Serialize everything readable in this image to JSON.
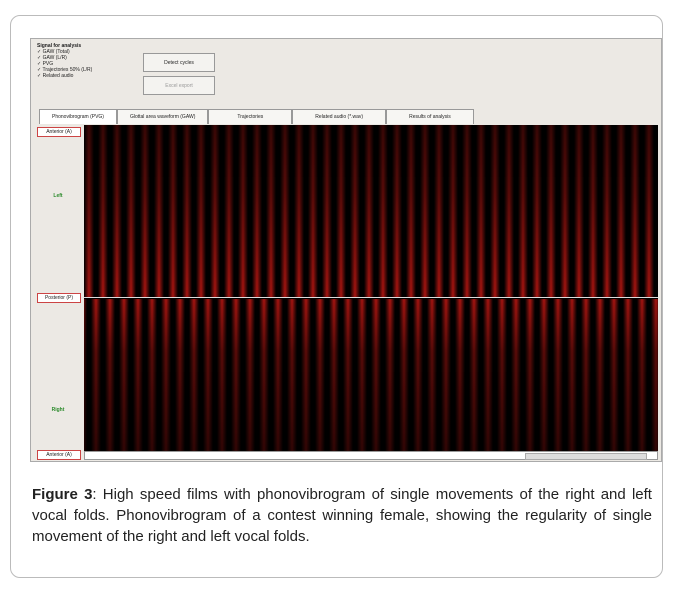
{
  "screenshot": {
    "signal_panel": {
      "title": "Signal for analysis",
      "items": [
        "GAW (Total)",
        "GAW (L/R)",
        "PVG",
        "Trajectories 50% (L/R)",
        "Related audio"
      ]
    },
    "buttons": [
      "Detect cycles",
      "Excel export"
    ],
    "tabs": [
      "Phonovibrogram (PVG)",
      "Glottal area waveform (GAW)",
      "Trajectories",
      "Related audio (*.wav)",
      "Results of analysis"
    ],
    "side_labels": {
      "top": "Anterior (A)",
      "upper": "Left",
      "middle": "Posterior (P)",
      "lower": "Right",
      "bottom": "Anterior (A)"
    }
  },
  "caption": {
    "label": "Figure 3",
    "text": ": High speed films with phonovibrogram of single movements of the right and left vocal folds. Phonovibrogram of a contest winning female, showing the regularity of single movement of the right and left vocal folds."
  }
}
